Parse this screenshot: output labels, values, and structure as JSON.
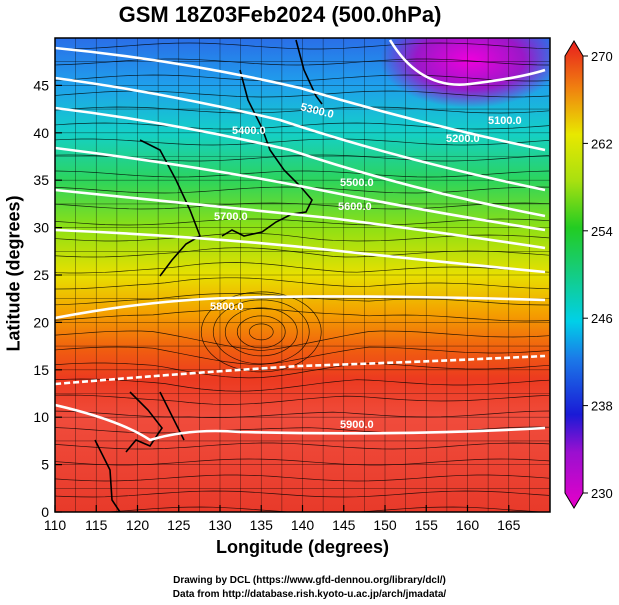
{
  "chart_data": {
    "type": "heatmap",
    "title": "GSM 18Z03Feb2024 (500.0hPa)",
    "xlabel": "Longitude (degrees)",
    "ylabel": "Latitude  (degrees)",
    "xlim": [
      110,
      170
    ],
    "ylim": [
      0,
      50
    ],
    "x_ticks": [
      "110",
      "115",
      "120",
      "125",
      "130",
      "135",
      "140",
      "145",
      "150",
      "155",
      "160",
      "165"
    ],
    "y_ticks": [
      "0",
      "5",
      "10",
      "15",
      "20",
      "25",
      "30",
      "35",
      "40",
      "45"
    ],
    "grid": true,
    "colorbar": {
      "range": [
        230,
        270
      ],
      "ticks": [
        "230",
        "238",
        "246",
        "254",
        "262",
        "270"
      ],
      "colors": [
        "#e600c8",
        "#1a1ad6",
        "#00d8e8",
        "#22cc22",
        "#e8e800",
        "#e81e1e"
      ]
    },
    "contour_labels": [
      "5100.0",
      "5200.0",
      "5300.0",
      "5400.0",
      "5500.0",
      "5600.0",
      "5700.0",
      "5800.0",
      "5900.0"
    ],
    "credits": [
      "Drawing by DCL (https://www.gfd-dennou.org/library/dcl/)",
      "Data from http://database.rish.kyoto-u.ac.jp/arch/jmadata/"
    ]
  }
}
